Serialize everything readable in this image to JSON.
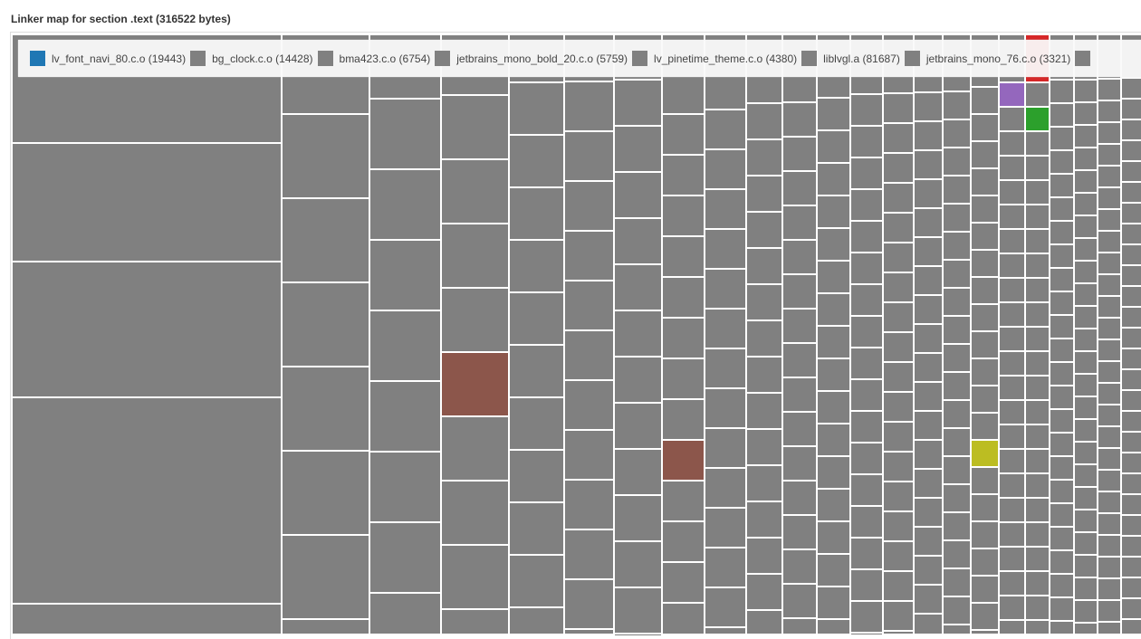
{
  "title": "Linker map for section .text (316522 bytes)",
  "legend": [
    {
      "label": "lv_font_navi_80.c.o (19443)",
      "color": "#1f77b4"
    },
    {
      "label": "bg_clock.c.o (14428)",
      "color": "#808080"
    },
    {
      "label": "bma423.c.o (6754)",
      "color": "#808080"
    },
    {
      "label": "jetbrains_mono_bold_20.c.o (5759)",
      "color": "#808080"
    },
    {
      "label": "lv_pinetime_theme.c.o (4380)",
      "color": "#808080"
    },
    {
      "label": "liblvgl.a (81687)",
      "color": "#808080"
    },
    {
      "label": "jetbrains_mono_76.c.o (3321)",
      "color": "#808080"
    }
  ],
  "colors": {
    "default": "#808080",
    "cyan": "#17becf",
    "brown": "#8c564b",
    "olive": "#bcbd22",
    "green": "#2ca02c",
    "red": "#d62728",
    "purple": "#9467bd"
  }
}
